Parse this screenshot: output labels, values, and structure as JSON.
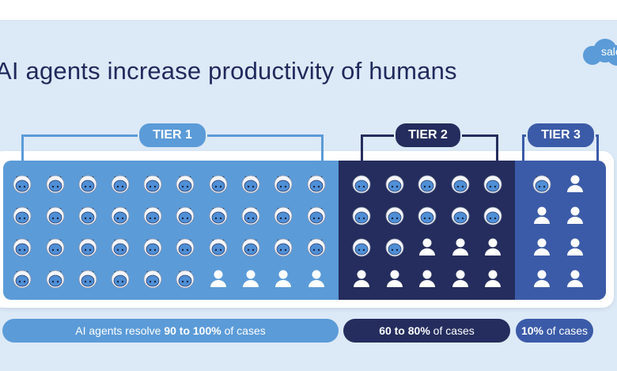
{
  "title": "AI agents increase productivity of humans",
  "logo_text": "sale",
  "colors": {
    "tier1": "#5b9bd8",
    "tier2": "#242d5d",
    "tier3": "#3b5ba8",
    "title": "#1f2a5c"
  },
  "tiers": [
    {
      "label": "TIER 1",
      "caption_pre": "AI agents resolve ",
      "caption_bold": "90 to 100%",
      "caption_post": " of cases",
      "grid": [
        [
          "robot",
          "robot",
          "robot",
          "robot",
          "robot",
          "robot",
          "robot",
          "robot",
          "robot",
          "robot"
        ],
        [
          "robot",
          "robot",
          "robot",
          "robot",
          "robot",
          "robot",
          "robot",
          "robot",
          "robot",
          "robot"
        ],
        [
          "robot",
          "robot",
          "robot",
          "robot",
          "robot",
          "robot",
          "robot",
          "robot",
          "robot",
          "robot"
        ],
        [
          "robot",
          "robot",
          "robot",
          "robot",
          "robot",
          "robot",
          "human",
          "human",
          "human",
          "human"
        ]
      ]
    },
    {
      "label": "TIER 2",
      "caption_pre": "",
      "caption_bold": "60 to 80%",
      "caption_post": " of cases",
      "grid": [
        [
          "robot",
          "robot",
          "robot",
          "robot",
          "robot"
        ],
        [
          "robot",
          "robot",
          "robot",
          "robot",
          "robot"
        ],
        [
          "robot",
          "robot",
          "human",
          "human",
          "human"
        ],
        [
          "human",
          "human",
          "human",
          "human",
          "human"
        ]
      ]
    },
    {
      "label": "TIER 3",
      "caption_pre": "",
      "caption_bold": "10%",
      "caption_post": " of cases",
      "grid": [
        [
          "robot",
          "human"
        ],
        [
          "human",
          "human"
        ],
        [
          "human",
          "human"
        ],
        [
          "human",
          "human"
        ]
      ]
    }
  ]
}
